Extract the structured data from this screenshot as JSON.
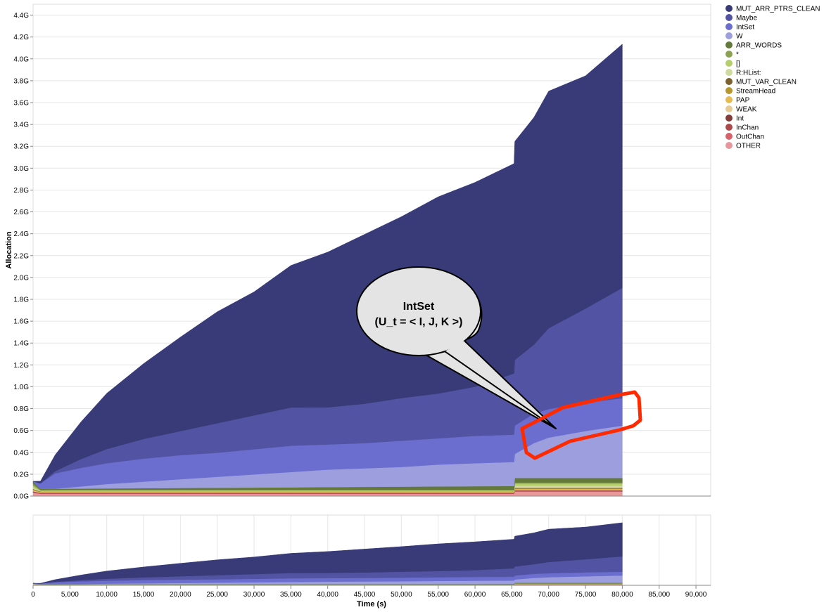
{
  "chart_data": [
    {
      "type": "area",
      "stacked": true,
      "title": "",
      "xlabel": "",
      "ylabel": "Allocation",
      "ylim": [
        0,
        4.5
      ],
      "y_unit": "G",
      "y_ticks": [
        "0.0G",
        "0.2G",
        "0.4G",
        "0.6G",
        "0.8G",
        "1.0G",
        "1.2G",
        "1.4G",
        "1.6G",
        "1.8G",
        "2.0G",
        "2.2G",
        "2.4G",
        "2.6G",
        "2.8G",
        "3.0G",
        "3.2G",
        "3.4G",
        "3.6G",
        "3.8G",
        "4.0G",
        "4.2G",
        "4.4G"
      ],
      "xlim": [
        0,
        92000
      ],
      "grid": true,
      "legend_position": "right",
      "x": [
        0,
        1000,
        3000,
        6500,
        10000,
        15000,
        20000,
        25000,
        30000,
        35000,
        40000,
        45000,
        50000,
        55000,
        60000,
        65300,
        65400,
        68000,
        70000,
        75000,
        80000
      ],
      "series": [
        {
          "name": "OTHER",
          "color": "#e89a9a",
          "values": [
            0.03,
            0.02,
            0.02,
            0.02,
            0.02,
            0.02,
            0.02,
            0.02,
            0.02,
            0.02,
            0.02,
            0.02,
            0.02,
            0.02,
            0.02,
            0.02,
            0.04,
            0.04,
            0.04,
            0.04,
            0.04
          ]
        },
        {
          "name": "OutChan",
          "color": "#d9586a",
          "values": [
            0.005,
            0.003,
            0.003,
            0.003,
            0.003,
            0.003,
            0.003,
            0.003,
            0.003,
            0.003,
            0.003,
            0.003,
            0.003,
            0.003,
            0.003,
            0.003,
            0.005,
            0.005,
            0.005,
            0.005,
            0.005
          ]
        },
        {
          "name": "InChan",
          "color": "#b44a55",
          "values": [
            0.005,
            0.003,
            0.003,
            0.003,
            0.003,
            0.003,
            0.003,
            0.003,
            0.003,
            0.003,
            0.003,
            0.003,
            0.003,
            0.003,
            0.003,
            0.003,
            0.005,
            0.005,
            0.005,
            0.005,
            0.005
          ]
        },
        {
          "name": "Int",
          "color": "#7b2e2e",
          "values": [
            0.003,
            0.002,
            0.002,
            0.002,
            0.002,
            0.002,
            0.002,
            0.002,
            0.002,
            0.002,
            0.002,
            0.002,
            0.002,
            0.002,
            0.002,
            0.002,
            0.003,
            0.003,
            0.003,
            0.003,
            0.003
          ]
        },
        {
          "name": "WEAK",
          "color": "#e6c79c",
          "values": [
            0.006,
            0.004,
            0.004,
            0.004,
            0.004,
            0.004,
            0.004,
            0.004,
            0.004,
            0.004,
            0.004,
            0.004,
            0.004,
            0.004,
            0.004,
            0.004,
            0.006,
            0.006,
            0.006,
            0.006,
            0.006
          ]
        },
        {
          "name": "PAP",
          "color": "#e2b84f",
          "values": [
            0.006,
            0.004,
            0.004,
            0.004,
            0.004,
            0.004,
            0.004,
            0.004,
            0.004,
            0.004,
            0.004,
            0.004,
            0.004,
            0.004,
            0.004,
            0.004,
            0.006,
            0.006,
            0.006,
            0.006,
            0.006
          ]
        },
        {
          "name": "StreamHead",
          "color": "#b8962f",
          "values": [
            0.005,
            0.003,
            0.003,
            0.003,
            0.003,
            0.003,
            0.003,
            0.003,
            0.003,
            0.003,
            0.003,
            0.003,
            0.003,
            0.003,
            0.003,
            0.003,
            0.005,
            0.005,
            0.005,
            0.005,
            0.005
          ]
        },
        {
          "name": "MUT_VAR_CLEAN",
          "color": "#7b6130",
          "values": [
            0.005,
            0.003,
            0.003,
            0.003,
            0.003,
            0.003,
            0.003,
            0.003,
            0.003,
            0.003,
            0.003,
            0.003,
            0.003,
            0.003,
            0.003,
            0.003,
            0.005,
            0.005,
            0.005,
            0.005,
            0.005
          ]
        },
        {
          "name": "R:HList:",
          "color": "#d3dba5",
          "values": [
            0.01,
            0.004,
            0.004,
            0.004,
            0.004,
            0.004,
            0.004,
            0.004,
            0.004,
            0.004,
            0.004,
            0.004,
            0.004,
            0.004,
            0.004,
            0.004,
            0.02,
            0.02,
            0.02,
            0.02,
            0.02
          ]
        },
        {
          "name": "[]",
          "color": "#b5cf6b",
          "values": [
            0.02,
            0.005,
            0.006,
            0.006,
            0.006,
            0.006,
            0.006,
            0.006,
            0.006,
            0.006,
            0.006,
            0.006,
            0.006,
            0.006,
            0.006,
            0.006,
            0.02,
            0.02,
            0.02,
            0.02,
            0.02
          ]
        },
        {
          "name": "*",
          "color": "#8ca252",
          "values": [
            0.02,
            0.005,
            0.005,
            0.005,
            0.005,
            0.005,
            0.005,
            0.005,
            0.005,
            0.005,
            0.005,
            0.005,
            0.005,
            0.005,
            0.005,
            0.005,
            0.01,
            0.01,
            0.01,
            0.01,
            0.01
          ]
        },
        {
          "name": "ARR_WORDS",
          "color": "#637939",
          "values": [
            0.02,
            0.01,
            0.01,
            0.011,
            0.013,
            0.015,
            0.017,
            0.019,
            0.021,
            0.023,
            0.025,
            0.027,
            0.029,
            0.031,
            0.033,
            0.035,
            0.04,
            0.04,
            0.04,
            0.04,
            0.04
          ]
        },
        {
          "name": "W",
          "color": "#9c9ede",
          "values": [
            0.0,
            0.0,
            0.0,
            0.02,
            0.04,
            0.06,
            0.08,
            0.1,
            0.12,
            0.14,
            0.16,
            0.17,
            0.18,
            0.2,
            0.21,
            0.22,
            0.22,
            0.32,
            0.37,
            0.43,
            0.48
          ]
        },
        {
          "name": "IntSet",
          "color": "#6b6ecf",
          "values": [
            0.0,
            0.05,
            0.14,
            0.17,
            0.19,
            0.21,
            0.22,
            0.22,
            0.23,
            0.24,
            0.23,
            0.23,
            0.24,
            0.24,
            0.25,
            0.25,
            0.26,
            0.27,
            0.26,
            0.26,
            0.25
          ]
        },
        {
          "name": "Maybe",
          "color": "#5254a3",
          "values": [
            0.0,
            0.0,
            0.02,
            0.08,
            0.13,
            0.18,
            0.22,
            0.27,
            0.31,
            0.35,
            0.34,
            0.36,
            0.39,
            0.41,
            0.45,
            0.56,
            0.6,
            0.63,
            0.74,
            0.86,
            1.01
          ]
        },
        {
          "name": "MUT_ARR_PTRS_CLEAN",
          "color": "#393b79",
          "values": [
            0.0,
            0.02,
            0.15,
            0.34,
            0.51,
            0.69,
            0.86,
            1.02,
            1.13,
            1.3,
            1.42,
            1.55,
            1.66,
            1.8,
            1.87,
            1.92,
            2.0,
            2.08,
            2.17,
            2.13,
            2.23
          ]
        }
      ],
      "annotation": {
        "title": "IntSet",
        "subtitle": "(U_t = < I, J, K >)"
      }
    },
    {
      "type": "area",
      "stacked": true,
      "title": "",
      "xlabel": "Time (s)",
      "ylabel": "",
      "xlim": [
        0,
        92000
      ],
      "x_ticks": [
        "0",
        "5,000",
        "10,000",
        "15,000",
        "20,000",
        "25,000",
        "30,000",
        "35,000",
        "40,000",
        "45,000",
        "50,000",
        "55,000",
        "60,000",
        "65,000",
        "70,000",
        "75,000",
        "80,000",
        "85,000",
        "90,000"
      ],
      "grid": true
    }
  ],
  "legend": {
    "items": [
      {
        "label": "MUT_ARR_PTRS_CLEAN",
        "color": "#393b79"
      },
      {
        "label": "Maybe",
        "color": "#5254a3"
      },
      {
        "label": "IntSet",
        "color": "#6b6ecf"
      },
      {
        "label": "W",
        "color": "#9c9ede"
      },
      {
        "label": "ARR_WORDS",
        "color": "#637939"
      },
      {
        "label": "*",
        "color": "#8ca252"
      },
      {
        "label": "[]",
        "color": "#b5cf6b"
      },
      {
        "label": "R:HList:",
        "color": "#cedb9c"
      },
      {
        "label": "MUT_VAR_CLEAN",
        "color": "#7b6130"
      },
      {
        "label": "StreamHead",
        "color": "#b8962f"
      },
      {
        "label": "PAP",
        "color": "#e7ba52"
      },
      {
        "label": "WEAK",
        "color": "#e7cb94"
      },
      {
        "label": "Int",
        "color": "#843c39"
      },
      {
        "label": "InChan",
        "color": "#ad494a"
      },
      {
        "label": "OutChan",
        "color": "#d6616b"
      },
      {
        "label": "OTHER",
        "color": "#e7969c"
      }
    ]
  },
  "highlight_color": "#ff2a00"
}
